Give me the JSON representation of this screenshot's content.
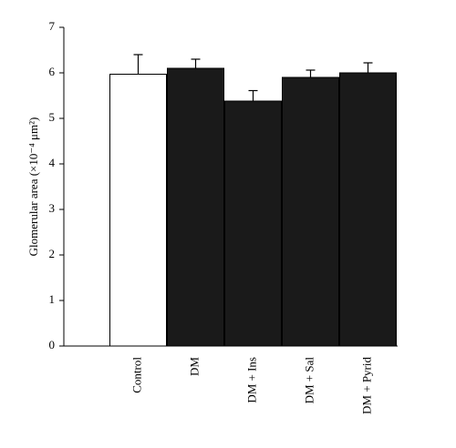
{
  "chart_data": {
    "type": "bar",
    "y_label": "Glomerular area (×10⁻⁴ μm²)",
    "categories": [
      "Control",
      "DM",
      "DM + Ins",
      "DM + Sal",
      "DM + Pyrid"
    ],
    "values": [
      5.97,
      6.1,
      5.38,
      5.9,
      6.0
    ],
    "errors": [
      0.43,
      0.2,
      0.23,
      0.16,
      0.22
    ],
    "colors": [
      "#ffffff",
      "#1a1a1a",
      "#1a1a1a",
      "#1a1a1a",
      "#1a1a1a"
    ],
    "ylim": [
      0,
      7
    ],
    "yticks": [
      0,
      1,
      2,
      3,
      4,
      5,
      6,
      7
    ]
  }
}
